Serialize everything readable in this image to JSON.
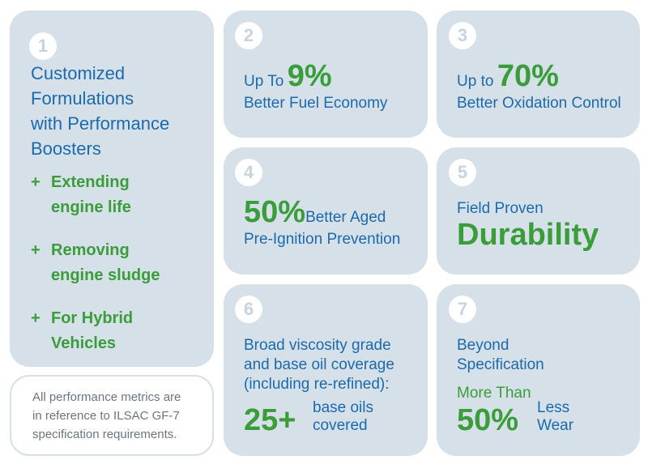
{
  "card1": {
    "number": "1",
    "title_lines": [
      "Customized",
      "Formulations",
      "with Performance",
      "Boosters"
    ],
    "bullets": [
      {
        "sign": "+",
        "lines": [
          "Extending",
          "engine life"
        ]
      },
      {
        "sign": "+",
        "lines": [
          "Removing",
          "engine sludge"
        ]
      },
      {
        "sign": "+",
        "lines": [
          "For Hybrid",
          "Vehicles"
        ]
      }
    ]
  },
  "note": {
    "lines": [
      "All performance metrics are",
      "in reference to ILSAC GF-7",
      "specification requirements."
    ]
  },
  "card2": {
    "number": "2",
    "prefix": "Up To",
    "big": "9%",
    "subtitle": "Better Fuel Economy"
  },
  "card3": {
    "number": "3",
    "prefix": "Up to",
    "big": "70%",
    "subtitle": "Better Oxidation Control"
  },
  "card4": {
    "number": "4",
    "big": "50%",
    "suffix": "Better Aged",
    "subtitle": "Pre-Ignition Prevention"
  },
  "card5": {
    "number": "5",
    "subtitle": "Field Proven",
    "big": "Durability"
  },
  "card6": {
    "number": "6",
    "lines": [
      "Broad viscosity grade",
      "and base oil coverage",
      "(including re-refined):"
    ],
    "big": "25+",
    "side_lines": [
      "base oils",
      "covered"
    ]
  },
  "card7": {
    "number": "7",
    "lines": [
      "Beyond",
      "Specification"
    ],
    "more_than": "More Than",
    "big": "50%",
    "side_lines": [
      "Less",
      "Wear"
    ]
  },
  "colors": {
    "card_bg": "#d5e0e9",
    "blue_text": "#1c6aab",
    "green_text": "#3a9d3a",
    "badge_text": "#c7d3dd"
  }
}
